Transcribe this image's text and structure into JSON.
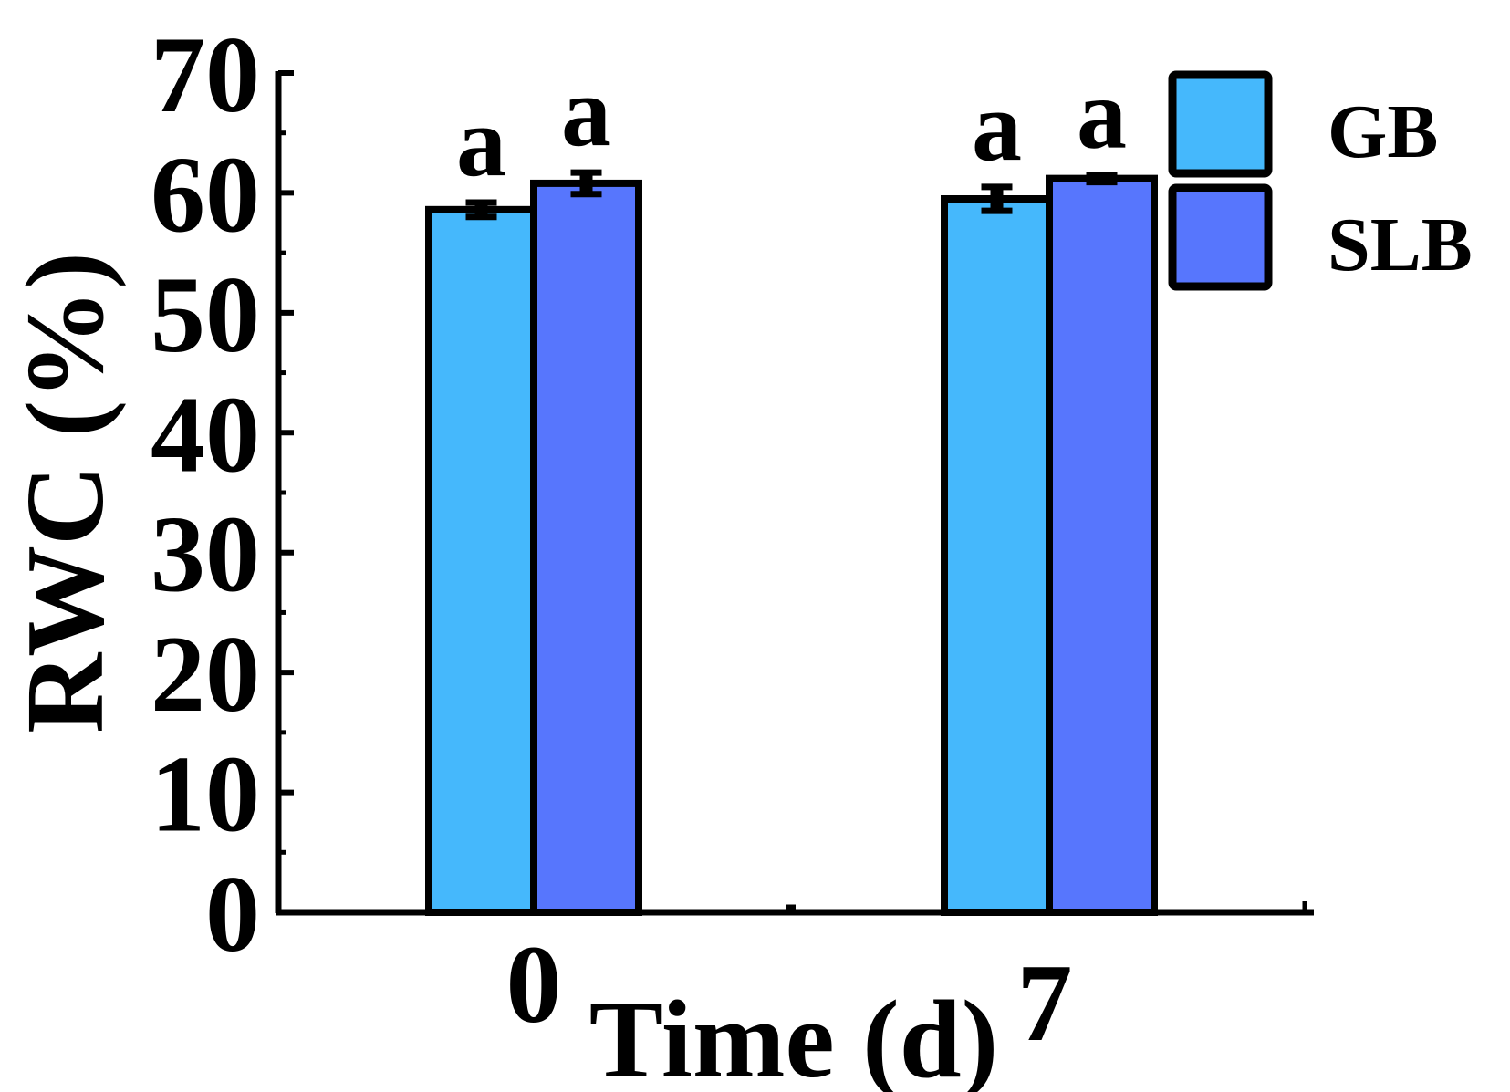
{
  "chart_data": {
    "type": "bar",
    "title": "",
    "xlabel": "Time (d)",
    "ylabel": "RWC (%)",
    "ylim": [
      0,
      70
    ],
    "yticks": [
      0,
      10,
      20,
      30,
      40,
      50,
      60,
      70
    ],
    "categories": [
      "0",
      "7"
    ],
    "series": [
      {
        "name": "GB",
        "color": "#45b8fc",
        "values": [
          58.6,
          59.5
        ],
        "errors": [
          0.6,
          1.0
        ],
        "letters": [
          "a",
          "a"
        ]
      },
      {
        "name": "SLB",
        "color": "#5776fd",
        "values": [
          60.8,
          61.2
        ],
        "errors": [
          0.9,
          0.3
        ],
        "letters": [
          "a",
          "a"
        ]
      }
    ],
    "legend_position": "top-right",
    "grid": false
  }
}
